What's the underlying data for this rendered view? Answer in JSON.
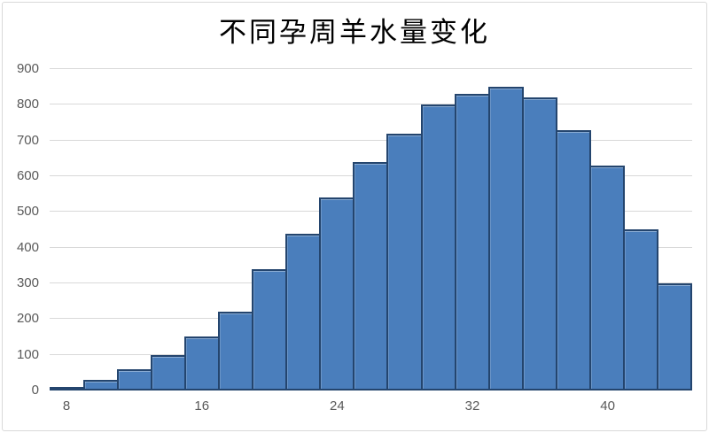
{
  "chart_data": {
    "type": "bar",
    "subtype": "histogram",
    "title": "不同孕周羊水量变化",
    "xlabel": "",
    "ylabel": "",
    "categories": [
      8,
      10,
      12,
      14,
      16,
      18,
      20,
      22,
      24,
      26,
      28,
      30,
      32,
      34,
      36,
      38,
      40,
      42,
      44
    ],
    "values": [
      10,
      30,
      60,
      100,
      150,
      220,
      340,
      440,
      540,
      640,
      720,
      800,
      830,
      850,
      820,
      730,
      630,
      450,
      300
    ],
    "x_tick_labels": [
      "8",
      "16",
      "24",
      "32",
      "40"
    ],
    "x_tick_indices": [
      0,
      4,
      8,
      12,
      16
    ],
    "y_ticks": [
      0,
      100,
      200,
      300,
      400,
      500,
      600,
      700,
      800,
      900
    ],
    "ylim": [
      0,
      900
    ],
    "grid": "horizontal",
    "legend": "none",
    "colors": {
      "bar_fill": "#4a7ebc",
      "bar_border": "#24456e",
      "gridline": "#d9d9d9",
      "tick_label": "#595959",
      "title": "#000000",
      "chart_border": "#d9d9d9",
      "background": "#ffffff"
    }
  }
}
